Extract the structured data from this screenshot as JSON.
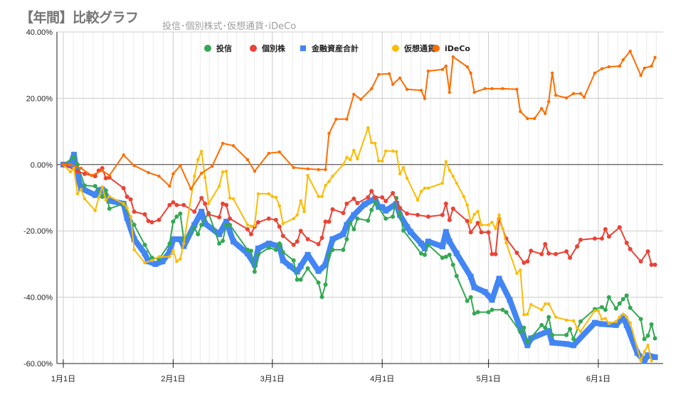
{
  "title": "【年間】比較グラフ",
  "subtitle": "投信･個別株式･仮想通貨･iDeCo",
  "chart_data": {
    "type": "line",
    "title": "【年間】比較グラフ",
    "subtitle": "投信･個別株式･仮想通貨･iDeCo",
    "xlabel": "",
    "ylabel": "",
    "ylim": [
      -60,
      40
    ],
    "y_ticks": [
      "40.00%",
      "20.00%",
      "0.00%",
      "-20.00%",
      "-40.00%",
      "-60.00%"
    ],
    "y_tick_values": [
      40,
      20,
      0,
      -20,
      -40,
      -60
    ],
    "x_ticks": [
      "1月1日",
      "2月1日",
      "3月1日",
      "4月1日",
      "5月1日",
      "6月1日"
    ],
    "x_tick_dates": [
      "1/1",
      "2/1",
      "3/1",
      "4/1",
      "5/1",
      "6/1"
    ],
    "grid": true,
    "legend_position": "top",
    "series": [
      {
        "name": "金融資産合計",
        "color": "#4285f4",
        "marker": "square",
        "x": [
          "1/1",
          "1/3",
          "1/4",
          "1/5",
          "1/6",
          "1/10",
          "1/11",
          "1/12",
          "1/14",
          "1/18",
          "1/19",
          "1/21",
          "1/24",
          "1/25",
          "1/27",
          "1/29",
          "1/31",
          "2/1",
          "2/3",
          "2/4",
          "2/7",
          "2/9",
          "2/10",
          "2/14",
          "2/16",
          "2/18",
          "2/22",
          "2/24",
          "2/25",
          "2/28",
          "3/3",
          "3/4",
          "3/6",
          "3/8",
          "3/9",
          "3/11",
          "3/14",
          "3/16",
          "3/18",
          "3/21",
          "3/22",
          "3/24",
          "3/27",
          "3/30",
          "3/31",
          "4/1",
          "4/2",
          "4/5",
          "4/6",
          "4/8",
          "4/9",
          "4/12",
          "4/13",
          "4/14",
          "4/18",
          "4/19",
          "4/20",
          "4/22",
          "4/26",
          "4/27",
          "4/30",
          "5/2",
          "5/4",
          "5/7",
          "5/10",
          "5/12",
          "5/13",
          "5/18",
          "5/19",
          "5/23",
          "5/25",
          "5/31",
          "6/2",
          "6/6",
          "6/8",
          "6/9",
          "6/12",
          "6/14",
          "6/15",
          "6/17"
        ],
        "y": [
          0,
          -0.2,
          3.0,
          -3.2,
          -7.1,
          -9.2,
          -7.7,
          -7.5,
          -10.9,
          -11.8,
          -16.1,
          -22.5,
          -26.8,
          -29.2,
          -30.0,
          -29.2,
          -26.4,
          -22.5,
          -22.5,
          -24.6,
          -18.2,
          -14.2,
          -17.8,
          -21.0,
          -17.2,
          -23.2,
          -26.8,
          -30.2,
          -25.3,
          -23.8,
          -24.7,
          -28.9,
          -30.6,
          -32.3,
          -30.6,
          -27.2,
          -32.1,
          -30.2,
          -22.5,
          -21.0,
          -18.2,
          -15.2,
          -12.0,
          -10.3,
          -12.8,
          -12.8,
          -13.9,
          -11.8,
          -15.2,
          -18.8,
          -20.3,
          -23.8,
          -25.3,
          -23.2,
          -24.7,
          -20.3,
          -23.2,
          -26.8,
          -33.8,
          -37.0,
          -38.4,
          -40.8,
          -34.4,
          -40.8,
          -49.4,
          -54.5,
          -52.4,
          -50.2,
          -53.7,
          -54.1,
          -54.5,
          -47.7,
          -48.1,
          -48.4,
          -46.0,
          -48.4,
          -56.8,
          -59.2,
          -57.5,
          -58.1
        ]
      },
      {
        "name": "投信",
        "color": "#34a853",
        "marker": "circle",
        "x": [
          "1/1",
          "1/4",
          "1/5",
          "1/7",
          "1/10",
          "1/12",
          "1/13",
          "1/14",
          "1/18",
          "1/21",
          "1/24",
          "1/26",
          "1/28",
          "1/31",
          "2/1",
          "2/2",
          "2/3",
          "2/4",
          "2/7",
          "2/8",
          "2/9",
          "2/11",
          "2/14",
          "2/15",
          "2/16",
          "2/17",
          "2/22",
          "2/23",
          "2/24",
          "2/25",
          "2/28",
          "3/2",
          "3/3",
          "3/4",
          "3/7",
          "3/8",
          "3/9",
          "3/11",
          "3/14",
          "3/15",
          "3/16",
          "3/17",
          "3/18",
          "3/21",
          "3/22",
          "3/23",
          "3/24",
          "3/25",
          "3/28",
          "3/29",
          "3/30",
          "4/2",
          "4/4",
          "4/5",
          "4/6",
          "4/7",
          "4/12",
          "4/13",
          "4/14",
          "4/18",
          "4/19",
          "4/20",
          "4/21",
          "4/22",
          "4/25",
          "4/26",
          "4/27",
          "4/28",
          "5/1",
          "5/2",
          "5/5",
          "5/6",
          "5/10",
          "5/11",
          "5/12",
          "5/16",
          "5/17",
          "5/18",
          "5/19",
          "5/23",
          "5/24",
          "5/25",
          "5/27",
          "5/31",
          "6/2",
          "6/3",
          "6/4",
          "6/6",
          "6/7",
          "6/8",
          "6/9",
          "6/10",
          "6/13",
          "6/14",
          "6/15",
          "6/16",
          "6/17"
        ],
        "y": [
          0,
          2.2,
          0,
          -6.3,
          -6.5,
          -9.7,
          -7.8,
          -13.3,
          -11.8,
          -18.2,
          -24.2,
          -28.1,
          -28.5,
          -23.8,
          -17.2,
          -15.7,
          -14.8,
          -22.5,
          -19.1,
          -21.0,
          -18.2,
          -14.6,
          -23.8,
          -23.0,
          -18.2,
          -18.2,
          -25.7,
          -26.0,
          -32.3,
          -27.2,
          -25.1,
          -25.7,
          -23.8,
          -26.4,
          -28.9,
          -34.7,
          -34.7,
          -31.3,
          -35.6,
          -39.9,
          -36.2,
          -27.2,
          -25.7,
          -25.7,
          -22.5,
          -17.6,
          -19.5,
          -16.3,
          -16.9,
          -13.7,
          -11.4,
          -16.3,
          -15.7,
          -10.1,
          -14.8,
          -19.9,
          -26.8,
          -27.2,
          -24.2,
          -28.1,
          -27.8,
          -27.2,
          -30.2,
          -33.6,
          -41.1,
          -40.0,
          -44.9,
          -44.5,
          -44.5,
          -43.8,
          -43.8,
          -44.5,
          -50.5,
          -49.2,
          -53.5,
          -48.4,
          -49.2,
          -46.0,
          -51.4,
          -51.4,
          -49.6,
          -52.6,
          -47.3,
          -43.6,
          -43.0,
          -43.8,
          -40.0,
          -43.4,
          -41.9,
          -40.6,
          -39.5,
          -43.2,
          -46.6,
          -52.6,
          -51.6,
          -48.2,
          -52.4
        ]
      },
      {
        "name": "個別株",
        "color": "#ea4335",
        "marker": "circle",
        "x": [
          "1/1",
          "1/5",
          "1/7",
          "1/10",
          "1/11",
          "1/12",
          "1/13",
          "1/14",
          "1/18",
          "1/19",
          "1/20",
          "1/21",
          "1/24",
          "1/25",
          "1/26",
          "1/28",
          "1/31",
          "2/1",
          "2/2",
          "2/4",
          "2/7",
          "2/9",
          "2/10",
          "2/11",
          "2/14",
          "2/15",
          "2/16",
          "2/17",
          "2/22",
          "2/23",
          "2/24",
          "2/25",
          "2/28",
          "3/2",
          "3/3",
          "3/4",
          "3/7",
          "3/8",
          "3/9",
          "3/11",
          "3/14",
          "3/15",
          "3/16",
          "3/17",
          "3/18",
          "3/21",
          "3/22",
          "3/24",
          "3/25",
          "3/28",
          "3/29",
          "3/30",
          "4/1",
          "4/2",
          "4/4",
          "4/6",
          "4/8",
          "4/11",
          "4/14",
          "4/18",
          "4/19",
          "4/20",
          "4/21",
          "4/25",
          "4/26",
          "4/28",
          "4/29",
          "5/1",
          "5/2",
          "5/3",
          "5/4",
          "5/6",
          "5/9",
          "5/11",
          "5/12",
          "5/13",
          "5/16",
          "5/17",
          "5/18",
          "5/20",
          "5/23",
          "5/24",
          "5/26",
          "5/27",
          "5/31",
          "6/2",
          "6/3",
          "6/4",
          "6/7",
          "6/9",
          "6/10",
          "6/13",
          "6/15",
          "6/16",
          "6/17"
        ],
        "y": [
          0,
          -2.0,
          -2.8,
          -3.5,
          -1.8,
          -1.1,
          -4.1,
          -3.9,
          -7.1,
          -9.7,
          -10.5,
          -14.2,
          -15.0,
          -17.0,
          -17.4,
          -16.7,
          -12.2,
          -11.4,
          -12.2,
          -12.2,
          -14.2,
          -10.1,
          -11.8,
          -15.0,
          -15.9,
          -11.8,
          -12.2,
          -16.3,
          -19.5,
          -21.0,
          -18.7,
          -17.4,
          -16.3,
          -16.7,
          -18.7,
          -21.5,
          -24.2,
          -23.2,
          -20.0,
          -22.5,
          -24.0,
          -22.1,
          -17.2,
          -17.2,
          -13.5,
          -14.6,
          -11.8,
          -10.3,
          -11.6,
          -9.9,
          -8.0,
          -9.9,
          -9.9,
          -11.0,
          -8.6,
          -13.1,
          -14.8,
          -15.2,
          -15.7,
          -15.2,
          -11.8,
          -16.7,
          -13.3,
          -17.0,
          -20.4,
          -17.6,
          -20.4,
          -20.4,
          -27.0,
          -27.0,
          -16.3,
          -22.3,
          -26.6,
          -29.6,
          -29.2,
          -26.0,
          -27.0,
          -24.0,
          -26.8,
          -27.0,
          -26.2,
          -28.1,
          -24.7,
          -22.7,
          -22.3,
          -22.3,
          -19.5,
          -21.7,
          -18.9,
          -23.6,
          -25.5,
          -29.2,
          -26.2,
          -30.2,
          -30.2
        ]
      },
      {
        "name": "仮想通貨",
        "color": "#fbbc04",
        "marker": "circle",
        "x": [
          "1/1",
          "1/3",
          "1/4",
          "1/5",
          "1/6",
          "1/7",
          "1/10",
          "1/11",
          "1/12",
          "1/13",
          "1/14",
          "1/18",
          "1/19",
          "1/20",
          "1/21",
          "1/24",
          "1/26",
          "1/28",
          "1/31",
          "2/1",
          "2/2",
          "2/3",
          "2/4",
          "2/7",
          "2/8",
          "2/9",
          "2/10",
          "2/11",
          "2/14",
          "2/15",
          "2/16",
          "2/17",
          "2/18",
          "2/22",
          "2/23",
          "2/24",
          "2/25",
          "2/28",
          "3/1",
          "3/2",
          "3/3",
          "3/4",
          "3/7",
          "3/8",
          "3/9",
          "3/10",
          "3/11",
          "3/14",
          "3/15",
          "3/16",
          "3/17",
          "3/18",
          "3/21",
          "3/22",
          "3/23",
          "3/24",
          "3/25",
          "3/28",
          "3/29",
          "3/30",
          "3/31",
          "4/1",
          "4/2",
          "4/4",
          "4/5",
          "4/6",
          "4/7",
          "4/8",
          "4/11",
          "4/12",
          "4/13",
          "4/14",
          "4/18",
          "4/19",
          "4/20",
          "4/21",
          "4/22",
          "4/24",
          "4/25",
          "4/26",
          "4/27",
          "4/28",
          "4/29",
          "5/1",
          "5/2",
          "5/3",
          "5/4",
          "5/5",
          "5/6",
          "5/9",
          "5/10",
          "5/11",
          "5/12",
          "5/13",
          "5/16",
          "5/17",
          "5/18",
          "5/20",
          "5/23",
          "5/25",
          "5/26",
          "5/27",
          "5/31",
          "6/1",
          "6/2",
          "6/3",
          "6/4",
          "6/6",
          "6/7",
          "6/8",
          "6/9",
          "6/10",
          "6/13",
          "6/14",
          "6/15",
          "6/16"
        ],
        "y": [
          0,
          -2.2,
          -1.1,
          -8.8,
          -7.5,
          -10.3,
          -13.9,
          -9.9,
          -6.7,
          -10.7,
          -9.6,
          -11.8,
          -13.1,
          -15.7,
          -25.7,
          -29.6,
          -28.9,
          -27.8,
          -27.8,
          -25.9,
          -29.2,
          -28.5,
          -23.8,
          -3.5,
          1.5,
          4.0,
          -3.9,
          -11.8,
          -6.5,
          -2.2,
          -2.0,
          -10.1,
          -10.3,
          -18.2,
          -18.6,
          -18.4,
          -8.8,
          -8.8,
          -9.6,
          -9.9,
          -12.4,
          -17.8,
          -16.3,
          -15.2,
          -10.9,
          -14.2,
          -3.3,
          -9.6,
          -9.6,
          -6.3,
          -5.1,
          -3.5,
          0.0,
          2.2,
          1.5,
          4.3,
          1.7,
          11.1,
          6.6,
          6.4,
          1.1,
          1.1,
          4.1,
          4.1,
          3.9,
          -2.8,
          -0.9,
          -4.1,
          -10.7,
          -8.1,
          -7.1,
          -7.1,
          -5.6,
          0.9,
          -1.7,
          -3.5,
          -5.6,
          -9.6,
          -12.2,
          -17.4,
          -15.0,
          -14.1,
          -18.2,
          -18.2,
          -17.4,
          -19.3,
          -15.2,
          -19.3,
          -23.6,
          -32.8,
          -31.8,
          -45.3,
          -45.1,
          -42.2,
          -43.8,
          -42.0,
          -42.0,
          -46.0,
          -46.9,
          -47.1,
          -49.2,
          -50.3,
          -44.1,
          -44.1,
          -46.6,
          -46.4,
          -47.9,
          -47.3,
          -46.0,
          -45.1,
          -46.0,
          -47.7,
          -59.2,
          -56.4,
          -54.5,
          -59.2
        ]
      },
      {
        "name": "iDeCo",
        "color": "#ff6d01",
        "marker": "circle",
        "x": [
          "1/1",
          "1/3",
          "1/6",
          "1/9",
          "1/12",
          "1/14",
          "1/18",
          "1/21",
          "1/25",
          "1/28",
          "1/31",
          "2/1",
          "2/3",
          "2/6",
          "2/9",
          "2/12",
          "2/15",
          "2/18",
          "2/22",
          "2/24",
          "2/28",
          "3/3",
          "3/7",
          "3/11",
          "3/14",
          "3/16",
          "3/17",
          "3/19",
          "3/22",
          "3/24",
          "3/26",
          "3/29",
          "3/31",
          "4/3",
          "4/4",
          "4/6",
          "4/8",
          "4/12",
          "4/13",
          "4/14",
          "4/18",
          "4/19",
          "4/20",
          "4/21",
          "4/25",
          "4/26",
          "4/27",
          "4/30",
          "5/2",
          "5/5",
          "5/9",
          "5/10",
          "5/12",
          "5/14",
          "5/16",
          "5/17",
          "5/18",
          "5/19",
          "5/20",
          "5/23",
          "5/25",
          "5/27",
          "5/28",
          "5/31",
          "6/2",
          "6/4",
          "6/7",
          "6/8",
          "6/10",
          "6/13",
          "6/14",
          "6/16",
          "6/17"
        ],
        "y": [
          0,
          0,
          -1.1,
          -3.3,
          -1.8,
          -3.3,
          2.9,
          -0.3,
          -2.4,
          -3.5,
          -6.5,
          -2.8,
          -0.3,
          -7.3,
          -2.6,
          -0.5,
          6.4,
          5.7,
          1.5,
          -2.0,
          3.4,
          3.8,
          -0.9,
          -1.3,
          -1.5,
          -1.5,
          9.4,
          13.7,
          13.7,
          21.2,
          19.7,
          22.9,
          27.2,
          27.4,
          24.2,
          26.1,
          22.7,
          22.4,
          19.9,
          28.2,
          28.7,
          29.7,
          21.8,
          32.5,
          29.5,
          27.6,
          21.8,
          22.9,
          22.9,
          22.9,
          22.7,
          16.0,
          13.9,
          13.9,
          16.9,
          15.4,
          19.0,
          27.6,
          20.9,
          20.1,
          21.4,
          21.4,
          20.3,
          27.6,
          28.9,
          29.5,
          29.7,
          31.6,
          34.2,
          26.9,
          29.1,
          29.7,
          32.3
        ]
      }
    ],
    "legend": [
      "投信",
      "個別株",
      "金融資産合計",
      "仮想通貨",
      "iDeCo"
    ]
  }
}
